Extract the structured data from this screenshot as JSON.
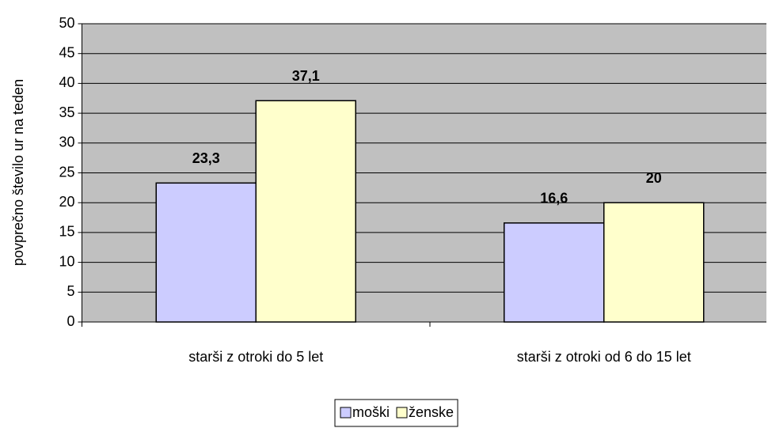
{
  "chart_data": {
    "type": "bar",
    "y_label": "povprečno število ur na teden",
    "categories": [
      "starši z otroki do 5 let",
      "starši z otroki od 6 do 15 let"
    ],
    "series": [
      {
        "name": "moški",
        "color": "#ccccff",
        "values": [
          23.3,
          16.6
        ],
        "value_labels": [
          "23,3",
          "16,6"
        ]
      },
      {
        "name": "ženske",
        "color": "#ffffcc",
        "values": [
          37.1,
          20
        ],
        "value_labels": [
          "37,1",
          "20"
        ]
      }
    ],
    "ylim": [
      0,
      50
    ],
    "yticks": [
      0,
      5,
      10,
      15,
      20,
      25,
      30,
      35,
      40,
      45,
      50
    ],
    "grid": true,
    "legend": "bottom",
    "plot_background": "#c0c0c0"
  }
}
